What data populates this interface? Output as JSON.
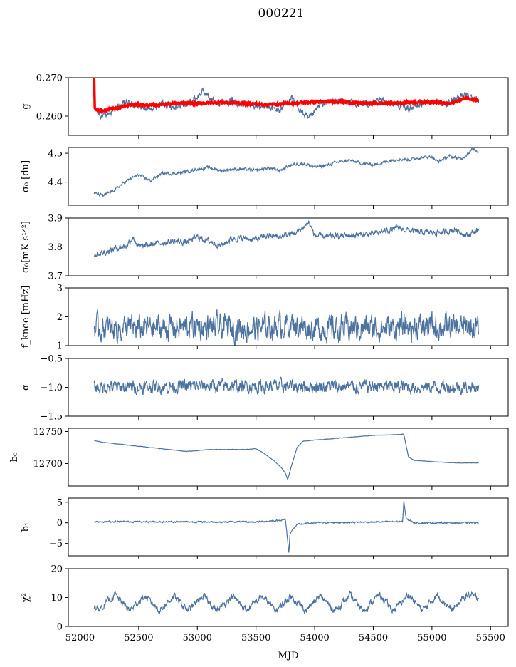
{
  "title": "000221",
  "xlabel": "MJD",
  "xlim": [
    51900,
    55650
  ],
  "xticks": [
    52000,
    52500,
    53000,
    53500,
    54000,
    54500,
    55000,
    55500
  ],
  "xtick_labels": [
    "52000",
    "52500",
    "53000",
    "53500",
    "54000",
    "54500",
    "55000",
    "55500"
  ],
  "colors": {
    "series": "#4c72a0",
    "fit": "#ff0000"
  },
  "chart_data": [
    {
      "type": "line",
      "id": "g",
      "ylabel": "g",
      "ylim": [
        0.255,
        0.27
      ],
      "yticks": [
        0.26,
        0.27
      ],
      "ytick_labels": [
        "0.260",
        "0.270"
      ],
      "series": [
        {
          "color": "#4c72a0",
          "base": [
            [
              52120,
              0.2625
            ],
            [
              52150,
              0.261
            ],
            [
              52200,
              0.2598
            ],
            [
              52300,
              0.262
            ],
            [
              52400,
              0.2635
            ],
            [
              52500,
              0.2625
            ],
            [
              52600,
              0.2615
            ],
            [
              52700,
              0.2635
            ],
            [
              52800,
              0.2625
            ],
            [
              52900,
              0.263
            ],
            [
              53000,
              0.265
            ],
            [
              53050,
              0.2665
            ],
            [
              53150,
              0.2635
            ],
            [
              53300,
              0.264
            ],
            [
              53450,
              0.263
            ],
            [
              53550,
              0.2625
            ],
            [
              53700,
              0.2615
            ],
            [
              53800,
              0.2645
            ],
            [
              53950,
              0.259
            ],
            [
              54050,
              0.263
            ],
            [
              54200,
              0.264
            ],
            [
              54400,
              0.263
            ],
            [
              54600,
              0.264
            ],
            [
              54800,
              0.262
            ],
            [
              55000,
              0.264
            ],
            [
              55150,
              0.263
            ],
            [
              55250,
              0.2655
            ],
            [
              55350,
              0.265
            ],
            [
              55400,
              0.264
            ]
          ],
          "noise": 0.0007
        },
        {
          "color": "#ff0000",
          "base": [
            [
              52120,
              0.27
            ],
            [
              52125,
              0.2625
            ],
            [
              52140,
              0.2615
            ],
            [
              52200,
              0.2614
            ],
            [
              52300,
              0.262
            ],
            [
              52450,
              0.263
            ],
            [
              52600,
              0.2628
            ],
            [
              52800,
              0.2633
            ],
            [
              53000,
              0.2633
            ],
            [
              53200,
              0.2636
            ],
            [
              53400,
              0.2633
            ],
            [
              53600,
              0.263
            ],
            [
              53800,
              0.2633
            ],
            [
              54000,
              0.2637
            ],
            [
              54200,
              0.2638
            ],
            [
              54400,
              0.2633
            ],
            [
              54600,
              0.2633
            ],
            [
              54800,
              0.2636
            ],
            [
              55000,
              0.2637
            ],
            [
              55150,
              0.2632
            ],
            [
              55300,
              0.2648
            ],
            [
              55400,
              0.264
            ]
          ],
          "noise": 0.0002
        }
      ]
    },
    {
      "type": "line",
      "id": "sigma0-du",
      "ylabel": "σ₀ [du]",
      "ylim": [
        4.32,
        4.52
      ],
      "yticks": [
        4.4,
        4.5
      ],
      "ytick_labels": [
        "4.4",
        "4.5"
      ],
      "series": [
        {
          "color": "#4c72a0",
          "base": [
            [
              52120,
              4.362
            ],
            [
              52200,
              4.353
            ],
            [
              52300,
              4.375
            ],
            [
              52400,
              4.405
            ],
            [
              52500,
              4.425
            ],
            [
              52600,
              4.405
            ],
            [
              52700,
              4.43
            ],
            [
              52800,
              4.43
            ],
            [
              52900,
              4.435
            ],
            [
              53000,
              4.445
            ],
            [
              53100,
              4.45
            ],
            [
              53200,
              4.44
            ],
            [
              53300,
              4.445
            ],
            [
              53400,
              4.445
            ],
            [
              53500,
              4.44
            ],
            [
              53600,
              4.45
            ],
            [
              53700,
              4.44
            ],
            [
              53800,
              4.46
            ],
            [
              53900,
              4.465
            ],
            [
              54000,
              4.452
            ],
            [
              54100,
              4.458
            ],
            [
              54200,
              4.47
            ],
            [
              54300,
              4.475
            ],
            [
              54400,
              4.465
            ],
            [
              54500,
              4.46
            ],
            [
              54600,
              4.47
            ],
            [
              54700,
              4.48
            ],
            [
              54800,
              4.478
            ],
            [
              54900,
              4.485
            ],
            [
              55000,
              4.488
            ],
            [
              55050,
              4.47
            ],
            [
              55150,
              4.49
            ],
            [
              55250,
              4.48
            ],
            [
              55350,
              4.515
            ],
            [
              55400,
              4.505
            ]
          ],
          "noise": 0.004
        }
      ]
    },
    {
      "type": "line",
      "id": "sigma0-mk",
      "ylabel": "σ₀[mK s¹ᐟ²]",
      "ylim": [
        3.7,
        3.9
      ],
      "yticks": [
        3.7,
        3.8,
        3.9
      ],
      "ytick_labels": [
        "3.7",
        "3.8",
        "3.9"
      ],
      "series": [
        {
          "color": "#4c72a0",
          "base": [
            [
              52120,
              3.775
            ],
            [
              52200,
              3.78
            ],
            [
              52300,
              3.795
            ],
            [
              52400,
              3.805
            ],
            [
              52450,
              3.835
            ],
            [
              52500,
              3.8
            ],
            [
              52700,
              3.815
            ],
            [
              52800,
              3.82
            ],
            [
              52900,
              3.815
            ],
            [
              53000,
              3.835
            ],
            [
              53100,
              3.82
            ],
            [
              53200,
              3.805
            ],
            [
              53300,
              3.83
            ],
            [
              53400,
              3.83
            ],
            [
              53500,
              3.825
            ],
            [
              53600,
              3.84
            ],
            [
              53700,
              3.835
            ],
            [
              53850,
              3.85
            ],
            [
              53950,
              3.885
            ],
            [
              54000,
              3.84
            ],
            [
              54100,
              3.835
            ],
            [
              54300,
              3.84
            ],
            [
              54500,
              3.845
            ],
            [
              54700,
              3.865
            ],
            [
              54900,
              3.85
            ],
            [
              55100,
              3.85
            ],
            [
              55200,
              3.86
            ],
            [
              55300,
              3.84
            ],
            [
              55400,
              3.86
            ]
          ],
          "noise": 0.008
        }
      ]
    },
    {
      "type": "line",
      "id": "fknee",
      "ylabel": "f_knee [mHz]",
      "ylim": [
        1,
        3
      ],
      "yticks": [
        1,
        2,
        3
      ],
      "ytick_labels": [
        "1",
        "2",
        "3"
      ],
      "series": [
        {
          "color": "#4c72a0",
          "base": [
            [
              52120,
              1.6
            ],
            [
              52500,
              1.6
            ],
            [
              53000,
              1.65
            ],
            [
              53500,
              1.6
            ],
            [
              53800,
              1.75
            ],
            [
              54000,
              1.6
            ],
            [
              54500,
              1.6
            ],
            [
              55000,
              1.65
            ],
            [
              55400,
              1.6
            ]
          ],
          "noise": 0.35
        }
      ]
    },
    {
      "type": "line",
      "id": "alpha",
      "ylabel": "α",
      "ylim": [
        -1.5,
        -0.5
      ],
      "yticks": [
        -1.5,
        -1.0,
        -0.5
      ],
      "ytick_labels": [
        "−1.5",
        "−1.0",
        "−0.5"
      ],
      "series": [
        {
          "color": "#4c72a0",
          "base": [
            [
              52120,
              -1.0
            ],
            [
              53000,
              -0.98
            ],
            [
              54000,
              -0.98
            ],
            [
              55400,
              -1.0
            ]
          ],
          "noise": 0.09
        }
      ]
    },
    {
      "type": "line",
      "id": "b0",
      "ylabel": "b₀",
      "ylim": [
        12665,
        12755
      ],
      "yticks": [
        12700,
        12750
      ],
      "ytick_labels": [
        "12700",
        "12750"
      ],
      "series": [
        {
          "color": "#4c72a0",
          "base": [
            [
              52120,
              12736
            ],
            [
              52200,
              12733
            ],
            [
              52400,
              12729
            ],
            [
              52600,
              12725
            ],
            [
              52800,
              12721
            ],
            [
              52900,
              12719
            ],
            [
              53000,
              12720
            ],
            [
              53100,
              12722
            ],
            [
              53300,
              12722
            ],
            [
              53400,
              12722
            ],
            [
              53500,
              12723
            ],
            [
              53550,
              12718
            ],
            [
              53650,
              12705
            ],
            [
              53720,
              12693
            ],
            [
              53750,
              12685
            ],
            [
              53770,
              12675
            ],
            [
              53800,
              12695
            ],
            [
              53850,
              12725
            ],
            [
              53900,
              12735
            ],
            [
              54100,
              12738
            ],
            [
              54300,
              12741
            ],
            [
              54500,
              12744
            ],
            [
              54700,
              12745
            ],
            [
              54760,
              12746
            ],
            [
              54800,
              12710
            ],
            [
              54850,
              12705
            ],
            [
              55000,
              12703
            ],
            [
              55200,
              12701
            ],
            [
              55400,
              12701
            ]
          ],
          "noise": 0.25
        }
      ]
    },
    {
      "type": "line",
      "id": "b1",
      "ylabel": "b₁",
      "ylim": [
        -8,
        6
      ],
      "yticks": [
        -5,
        0,
        5
      ],
      "ytick_labels": [
        "−5",
        "0",
        "5"
      ],
      "series": [
        {
          "color": "#4c72a0",
          "base": [
            [
              52120,
              0.3
            ],
            [
              53500,
              0.2
            ],
            [
              53700,
              0.6
            ],
            [
              53750,
              0.8
            ],
            [
              53760,
              -1.5
            ],
            [
              53780,
              -7.5
            ],
            [
              53790,
              -2.5
            ],
            [
              53850,
              -0.4
            ],
            [
              54000,
              0.0
            ],
            [
              54750,
              0.3
            ],
            [
              54760,
              5.2
            ],
            [
              54780,
              1.0
            ],
            [
              54850,
              0.0
            ],
            [
              55400,
              0.0
            ]
          ],
          "noise": 0.15
        }
      ]
    },
    {
      "type": "line",
      "id": "chi2",
      "ylabel": "χ²",
      "ylim": [
        0,
        20
      ],
      "yticks": [
        0,
        10,
        20
      ],
      "ytick_labels": [
        "0",
        "10",
        "20"
      ],
      "series": [
        {
          "color": "#4c72a0",
          "base": [
            [
              52120,
              7
            ],
            [
              52150,
              5.5
            ],
            [
              52300,
              11
            ],
            [
              52420,
              5.5
            ],
            [
              52550,
              10.5
            ],
            [
              52680,
              5.5
            ],
            [
              52800,
              10.5
            ],
            [
              52920,
              5.5
            ],
            [
              53050,
              10.5
            ],
            [
              53170,
              5.5
            ],
            [
              53300,
              10.5
            ],
            [
              53420,
              5.5
            ],
            [
              53550,
              10.5
            ],
            [
              53670,
              5.5
            ],
            [
              53800,
              10.5
            ],
            [
              53920,
              5.5
            ],
            [
              54050,
              10.5
            ],
            [
              54170,
              5.5
            ],
            [
              54300,
              10.5
            ],
            [
              54420,
              5.5
            ],
            [
              54550,
              11
            ],
            [
              54670,
              5.5
            ],
            [
              54800,
              11
            ],
            [
              54920,
              5.5
            ],
            [
              55050,
              11
            ],
            [
              55170,
              5.5
            ],
            [
              55300,
              11
            ],
            [
              55400,
              10
            ]
          ],
          "noise": 0.9
        }
      ]
    }
  ]
}
